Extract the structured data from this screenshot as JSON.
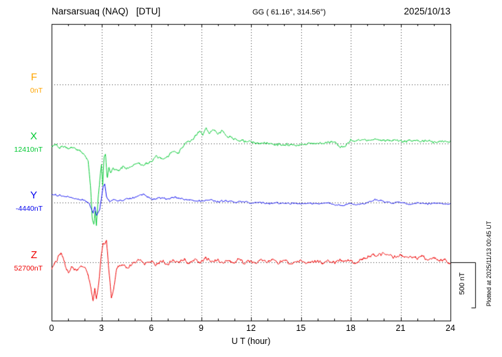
{
  "header": {
    "title": "Narsarsuaq (NAQ)   [DTU]",
    "gg": "GG ( 61.16°, 314.56°)",
    "date": "2025/10/13"
  },
  "x_axis": {
    "label": "U T (hour)",
    "ticks": [
      0,
      3,
      6,
      9,
      12,
      15,
      18,
      21,
      24
    ],
    "range": [
      0,
      24
    ]
  },
  "scale_bar": {
    "label": "500 nT",
    "value_nT": 500
  },
  "side_note": "Plotted at 2025/11/13 00:45 UT",
  "colors": {
    "F": "#FFA500",
    "X": "#00C832",
    "Y": "#0000EE",
    "Z": "#EE0000",
    "axis": "#000000"
  },
  "chart_data": {
    "type": "line",
    "title": "Narsarsuaq (NAQ) [DTU] magnetogram 2025/10/13",
    "xlabel": "U T (hour)",
    "x_range": [
      0,
      24
    ],
    "grid": "dotted vertical every 3 h, dotted horizontal at each component baseline",
    "scale_nT_per_bar": 500,
    "series": [
      {
        "name": "F",
        "baseline_label": "0nT",
        "baseline_nT": 0,
        "color_key": "F",
        "noise_nT": 0,
        "points": []
      },
      {
        "name": "X",
        "baseline_label": "12410nT",
        "baseline_nT": 12410,
        "color_key": "X",
        "noise_nT": 13,
        "points": [
          [
            0,
            -30
          ],
          [
            0.3,
            -15
          ],
          [
            0.5,
            -45
          ],
          [
            0.8,
            -30
          ],
          [
            1,
            -52
          ],
          [
            1.3,
            -37
          ],
          [
            1.5,
            -67
          ],
          [
            1.8,
            -97
          ],
          [
            2,
            -120
          ],
          [
            2.2,
            -195
          ],
          [
            2.35,
            -500
          ],
          [
            2.45,
            -830
          ],
          [
            2.55,
            -900
          ],
          [
            2.62,
            -760
          ],
          [
            2.7,
            -900
          ],
          [
            2.8,
            -610
          ],
          [
            2.9,
            -400
          ],
          [
            3,
            -230
          ],
          [
            3.08,
            -460
          ],
          [
            3.15,
            -160
          ],
          [
            3.25,
            -120
          ],
          [
            3.35,
            -380
          ],
          [
            3.45,
            -270
          ],
          [
            3.55,
            -330
          ],
          [
            3.7,
            -270
          ],
          [
            4,
            -310
          ],
          [
            4.3,
            -255
          ],
          [
            4.6,
            -280
          ],
          [
            5,
            -220
          ],
          [
            5.5,
            -235
          ],
          [
            6,
            -195
          ],
          [
            6.3,
            -140
          ],
          [
            6.6,
            -170
          ],
          [
            7,
            -140
          ],
          [
            7.3,
            -82
          ],
          [
            7.6,
            -110
          ],
          [
            8,
            -7
          ],
          [
            8.3,
            30
          ],
          [
            8.6,
            70
          ],
          [
            8.9,
            130
          ],
          [
            9.1,
            105
          ],
          [
            9.3,
            180
          ],
          [
            9.5,
            105
          ],
          [
            9.7,
            150
          ],
          [
            10,
            105
          ],
          [
            10.3,
            140
          ],
          [
            10.6,
            75
          ],
          [
            11,
            52
          ],
          [
            11.5,
            30
          ],
          [
            12,
            15
          ],
          [
            12.5,
            -7
          ],
          [
            13,
            7
          ],
          [
            13.5,
            -15
          ],
          [
            14,
            -7
          ],
          [
            14.5,
            -22
          ],
          [
            15,
            -7
          ],
          [
            15.5,
            7
          ],
          [
            16,
            -7
          ],
          [
            16.5,
            7
          ],
          [
            17,
            15
          ],
          [
            17.4,
            -45
          ],
          [
            17.7,
            -22
          ],
          [
            18,
            30
          ],
          [
            18.5,
            37
          ],
          [
            19,
            30
          ],
          [
            19.5,
            45
          ],
          [
            20,
            30
          ],
          [
            20.5,
            37
          ],
          [
            21,
            22
          ],
          [
            21.5,
            30
          ],
          [
            22,
            22
          ],
          [
            22.5,
            30
          ],
          [
            23,
            15
          ],
          [
            23.5,
            22
          ],
          [
            24,
            15
          ]
        ]
      },
      {
        "name": "Y",
        "baseline_label": "-4440nT",
        "baseline_nT": -4440,
        "color_key": "Y",
        "noise_nT": 9,
        "points": [
          [
            0,
            90
          ],
          [
            0.5,
            75
          ],
          [
            1,
            60
          ],
          [
            1.5,
            37
          ],
          [
            2,
            22
          ],
          [
            2.3,
            -22
          ],
          [
            2.5,
            -112
          ],
          [
            2.6,
            -40
          ],
          [
            2.7,
            -150
          ],
          [
            2.9,
            -75
          ],
          [
            3,
            37
          ],
          [
            3.1,
            170
          ],
          [
            3.2,
            200
          ],
          [
            3.3,
            75
          ],
          [
            3.5,
            0
          ],
          [
            3.7,
            37
          ],
          [
            4,
            15
          ],
          [
            4.5,
            37
          ],
          [
            5,
            52
          ],
          [
            5.5,
            90
          ],
          [
            5.8,
            60
          ],
          [
            6,
            37
          ],
          [
            6.5,
            52
          ],
          [
            7,
            37
          ],
          [
            7.5,
            60
          ],
          [
            8,
            37
          ],
          [
            8.5,
            22
          ],
          [
            9,
            15
          ],
          [
            9.5,
            30
          ],
          [
            10,
            7
          ],
          [
            10.5,
            22
          ],
          [
            11,
            0
          ],
          [
            11.5,
            15
          ],
          [
            12,
            -7
          ],
          [
            12.5,
            7
          ],
          [
            13,
            -15
          ],
          [
            13.5,
            0
          ],
          [
            14,
            -15
          ],
          [
            14.5,
            -7
          ],
          [
            15,
            -22
          ],
          [
            15.5,
            -7
          ],
          [
            16,
            -15
          ],
          [
            16.5,
            0
          ],
          [
            17,
            -22
          ],
          [
            17.5,
            -37
          ],
          [
            18,
            -15
          ],
          [
            18.5,
            -22
          ],
          [
            19,
            -7
          ],
          [
            19.5,
            37
          ],
          [
            20,
            7
          ],
          [
            20.5,
            -7
          ],
          [
            21,
            0
          ],
          [
            21.5,
            -15
          ],
          [
            22,
            -7
          ],
          [
            22.5,
            -15
          ],
          [
            23,
            -7
          ],
          [
            23.5,
            -15
          ],
          [
            24,
            -15
          ]
        ]
      },
      {
        "name": "Z",
        "baseline_label": "52700nT",
        "baseline_nT": 52700,
        "color_key": "Z",
        "noise_nT": 16,
        "points": [
          [
            0,
            -75
          ],
          [
            0.2,
            -22
          ],
          [
            0.4,
            52
          ],
          [
            0.6,
            90
          ],
          [
            0.8,
            -22
          ],
          [
            1,
            -120
          ],
          [
            1.2,
            -60
          ],
          [
            1.5,
            -97
          ],
          [
            1.8,
            -45
          ],
          [
            2,
            -60
          ],
          [
            2.2,
            -135
          ],
          [
            2.4,
            -322
          ],
          [
            2.5,
            -435
          ],
          [
            2.6,
            -285
          ],
          [
            2.7,
            -420
          ],
          [
            2.85,
            -210
          ],
          [
            3,
            90
          ],
          [
            3.1,
            225
          ],
          [
            3.2,
            200
          ],
          [
            3.3,
            240
          ],
          [
            3.45,
            -97
          ],
          [
            3.6,
            -397
          ],
          [
            3.75,
            -285
          ],
          [
            3.9,
            -97
          ],
          [
            4,
            -60
          ],
          [
            4.3,
            -22
          ],
          [
            4.6,
            -60
          ],
          [
            5,
            0
          ],
          [
            5.3,
            30
          ],
          [
            5.6,
            -15
          ],
          [
            6,
            15
          ],
          [
            6.3,
            -37
          ],
          [
            6.6,
            15
          ],
          [
            7,
            -22
          ],
          [
            7.3,
            30
          ],
          [
            7.6,
            -7
          ],
          [
            8,
            30
          ],
          [
            8.3,
            -22
          ],
          [
            8.6,
            30
          ],
          [
            9,
            0
          ],
          [
            9.3,
            52
          ],
          [
            9.6,
            0
          ],
          [
            10,
            30
          ],
          [
            10.3,
            -15
          ],
          [
            10.6,
            30
          ],
          [
            11,
            0
          ],
          [
            11.3,
            37
          ],
          [
            11.6,
            -7
          ],
          [
            12,
            15
          ],
          [
            12.3,
            -22
          ],
          [
            12.6,
            22
          ],
          [
            13,
            -7
          ],
          [
            13.3,
            30
          ],
          [
            13.6,
            -15
          ],
          [
            14,
            15
          ],
          [
            14.5,
            -15
          ],
          [
            15,
            15
          ],
          [
            15.5,
            -7
          ],
          [
            16,
            22
          ],
          [
            16.3,
            -15
          ],
          [
            16.6,
            15
          ],
          [
            17,
            -7
          ],
          [
            17.3,
            30
          ],
          [
            17.6,
            0
          ],
          [
            18,
            22
          ],
          [
            18.3,
            -7
          ],
          [
            18.6,
            30
          ],
          [
            19,
            52
          ],
          [
            19.3,
            90
          ],
          [
            19.6,
            67
          ],
          [
            20,
            105
          ],
          [
            20.3,
            75
          ],
          [
            20.6,
            52
          ],
          [
            21,
            75
          ],
          [
            21.3,
            45
          ],
          [
            21.6,
            67
          ],
          [
            22,
            37
          ],
          [
            22.3,
            67
          ],
          [
            22.6,
            30
          ],
          [
            23,
            52
          ],
          [
            23.3,
            15
          ],
          [
            23.6,
            30
          ],
          [
            24,
            -22
          ]
        ]
      }
    ]
  }
}
